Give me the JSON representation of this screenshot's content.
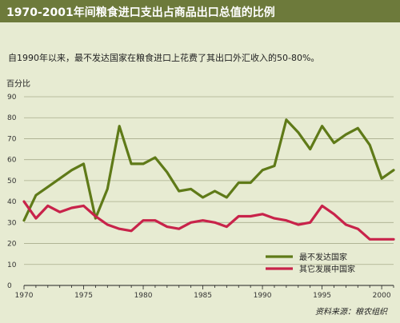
{
  "header": {
    "title": "1970-2001年间粮食进口支出占商品出口总值的比例"
  },
  "subtitle": "自1990年以来，最不发达国家在粮食进口上花费了其出口外汇收入的50-80%。",
  "source": "资料来源：粮农组织",
  "colors": {
    "header_bg": "#6d7a3b",
    "page_bg": "#e7ebd2",
    "ldc": "#5f7a18",
    "other": "#c8234a"
  },
  "chart_data": {
    "type": "line",
    "title": "1970-2001年间粮食进口支出占商品出口总值的比例",
    "ylabel": "百分比",
    "xlabel": "",
    "xlim": [
      1970,
      2001
    ],
    "ylim": [
      0,
      90
    ],
    "xticks": [
      1970,
      1975,
      1980,
      1985,
      1990,
      1995,
      2000
    ],
    "yticks": [
      0,
      10,
      20,
      30,
      40,
      50,
      60,
      70,
      80,
      90
    ],
    "grid": true,
    "legend_position": "bottom-right",
    "x": [
      1970,
      1971,
      1972,
      1973,
      1974,
      1975,
      1976,
      1977,
      1978,
      1979,
      1980,
      1981,
      1982,
      1983,
      1984,
      1985,
      1986,
      1987,
      1988,
      1989,
      1990,
      1991,
      1992,
      1993,
      1994,
      1995,
      1996,
      1997,
      1998,
      1999,
      2000,
      2001
    ],
    "series": [
      {
        "name": "最不发达国家",
        "color": "#5f7a18",
        "values": [
          31,
          43,
          47,
          51,
          55,
          58,
          32,
          46,
          76,
          58,
          58,
          61,
          54,
          45,
          46,
          42,
          45,
          42,
          49,
          49,
          55,
          57,
          79,
          73,
          65,
          76,
          68,
          72,
          75,
          67,
          51,
          55
        ]
      },
      {
        "name": "其它发展中国家",
        "color": "#c8234a",
        "values": [
          40,
          32,
          38,
          35,
          37,
          38,
          33,
          29,
          27,
          26,
          31,
          31,
          28,
          27,
          30,
          31,
          30,
          28,
          33,
          33,
          34,
          32,
          31,
          29,
          30,
          38,
          34,
          29,
          27,
          22,
          22,
          22
        ]
      }
    ]
  }
}
